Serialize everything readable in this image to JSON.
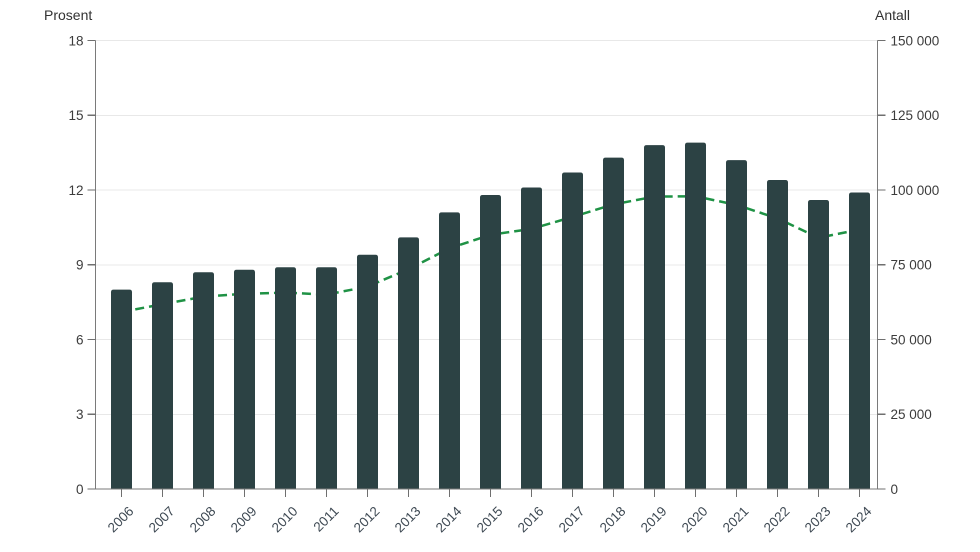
{
  "chart_data": {
    "type": "bar",
    "title": "",
    "categories": [
      "2006",
      "2007",
      "2008",
      "2009",
      "2010",
      "2011",
      "2012",
      "2013",
      "2014",
      "2015",
      "2016",
      "2017",
      "2018",
      "2019",
      "2020",
      "2021",
      "2022",
      "2023",
      "2024"
    ],
    "series": [
      {
        "name": "Prosent",
        "type": "bar",
        "axis": "left",
        "color": "#2c4244",
        "values": [
          8.0,
          8.3,
          8.7,
          8.8,
          8.9,
          8.9,
          9.4,
          10.1,
          11.1,
          11.8,
          12.1,
          12.7,
          13.3,
          13.8,
          13.9,
          13.2,
          12.4,
          11.6,
          11.9
        ]
      },
      {
        "name": "Antall",
        "type": "line",
        "axis": "right",
        "color": "#1f9245",
        "dashed": true,
        "values": [
          59200,
          61800,
          64300,
          65300,
          65700,
          65000,
          67700,
          73500,
          80500,
          85000,
          87000,
          91000,
          95200,
          97800,
          97900,
          95000,
          90500,
          84000,
          86800
        ]
      }
    ],
    "left_axis": {
      "label": "Prosent",
      "range": [
        0,
        18
      ],
      "ticks": [
        0,
        3,
        6,
        9,
        12,
        15,
        18
      ],
      "tick_labels": [
        "0",
        "3",
        "6",
        "9",
        "12",
        "15",
        "18"
      ]
    },
    "right_axis": {
      "label": "Antall",
      "range": [
        0,
        150000
      ],
      "ticks": [
        0,
        25000,
        50000,
        75000,
        100000,
        125000,
        150000
      ],
      "tick_labels": [
        "0",
        "25 000",
        "50 000",
        "75 000",
        "100 000",
        "125 000",
        "150 000"
      ]
    },
    "grid": true,
    "legend_position": "none"
  },
  "style": {
    "background": "#ffffff",
    "grid_color": "#e8e8e8",
    "axis_color": "#7a7a7a",
    "tick_color": "#6f6f6f",
    "tick_label_color": "#3c3c3c",
    "year_label_color": "#3e4953",
    "bar_color": "#2c4244",
    "line_color": "#1f9245"
  }
}
